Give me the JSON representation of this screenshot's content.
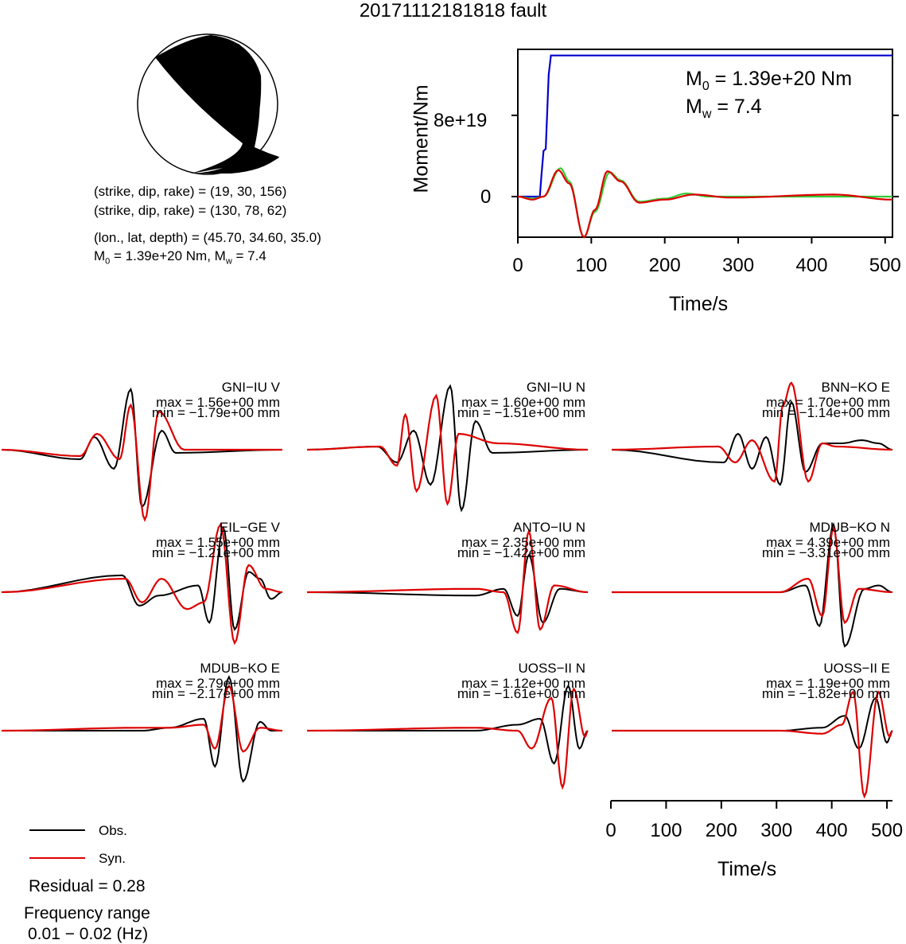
{
  "title": "20171112181818 fault",
  "beachball": {
    "line1": "(strike, dip, rake) = (19, 30, 156)",
    "line2": "(strike, dip, rake) = (130, 78, 62)",
    "line3": "(lon., lat, depth) = (45.70, 34.60, 35.0)",
    "m0_label": "M",
    "m0_sub": "0",
    "m0_value": " = 1.39e+20 Nm, M",
    "mw_sub": "w",
    "mw_value": " = 7.4"
  },
  "moment_plot": {
    "ylabel": "Moment/Nm",
    "xlabel": "Time/s",
    "yticks": [
      "0",
      "8e+19"
    ],
    "xticks": [
      "0",
      "100",
      "200",
      "300",
      "400",
      "500"
    ],
    "m0_text": " = 1.39e+20 Nm",
    "mw_text": " = 7.4",
    "m_letter": "M",
    "m0_sub": "0",
    "mw_sub": "w",
    "colors": {
      "cumulative": "#0000cc",
      "rate_obs": "#33cc33",
      "rate_syn": "#dd0000"
    }
  },
  "waveform_axis": {
    "xlabel": "Time/s",
    "xticks": [
      "0",
      "100",
      "200",
      "300",
      "400",
      "500"
    ]
  },
  "legend": {
    "obs": "Obs.",
    "syn": "Syn.",
    "residual": "Residual = 0.28",
    "freq_title": "Frequency range",
    "freq_value": "0.01 − 0.02 (Hz)",
    "obs_color": "#000000",
    "syn_color": "#dd0000"
  },
  "chart_data": [
    {
      "type": "line",
      "title": "",
      "xlabel": "Time/s",
      "ylabel": "Moment/Nm",
      "xlim": [
        0,
        510
      ],
      "ylim": [
        -4e+19,
        1.45e+20
      ],
      "series": [
        {
          "values": [
            [
              0,
              0
            ],
            [
              30,
              0
            ],
            [
              32,
              2e+19
            ],
            [
              35,
              4.5e+19
            ],
            [
              38,
              4.7e+19
            ],
            [
              42,
              1.2e+20
            ],
            [
              45,
              1.39e+20
            ],
            [
              510,
              1.39e+20
            ]
          ]
        },
        {
          "values": [
            [
              0,
              0
            ],
            [
              20,
              -2e+18
            ],
            [
              35,
              0
            ],
            [
              58,
              2.8e+19
            ],
            [
              70,
              1.5e+19
            ],
            [
              90,
              -4e+19
            ],
            [
              105,
              -1.5e+19
            ],
            [
              125,
              2.4e+19
            ],
            [
              140,
              1.6e+19
            ],
            [
              165,
              -5e+18
            ],
            [
              200,
              -2e+18
            ],
            [
              230,
              3e+18
            ],
            [
              260,
              0
            ],
            [
              510,
              0
            ]
          ]
        },
        {
          "values": [
            [
              0,
              0
            ],
            [
              20,
              -3e+18
            ],
            [
              35,
              0
            ],
            [
              55,
              2.6e+19
            ],
            [
              70,
              1.3e+19
            ],
            [
              90,
              -4e+19
            ],
            [
              105,
              -1.3e+19
            ],
            [
              122,
              2.5e+19
            ],
            [
              140,
              1.5e+19
            ],
            [
              165,
              -6e+18
            ],
            [
              200,
              -3e+18
            ],
            [
              240,
              2e+18
            ],
            [
              290,
              -1e+18
            ],
            [
              430,
              2e+18
            ],
            [
              510,
              -3e+18
            ]
          ]
        }
      ]
    },
    {
      "type": "line",
      "panels": [
        {
          "name": "GNI−IU V",
          "max": "max = 1.56e+00 mm",
          "min": "min = −1.79e+00 mm"
        },
        {
          "name": "GNI−IU N",
          "max": "max = 1.60e+00 mm",
          "min": "min = −1.51e+00 mm"
        },
        {
          "name": "BNN−KO E",
          "max": "max = 1.70e+00 mm",
          "min": "min = −1.14e+00 mm"
        },
        {
          "name": "EIL−GE V",
          "max": "max = 1.55e+00 mm",
          "min": "min = −1.21e+00 mm"
        },
        {
          "name": "ANTO−IU N",
          "max": "max = 2.35e+00 mm",
          "min": "min = −1.42e+00 mm"
        },
        {
          "name": "MDUB−KO N",
          "max": "max = 4.39e+00 mm",
          "min": "min = −3.31e+00 mm"
        },
        {
          "name": "MDUB−KO E",
          "max": "max = 2.79e+00 mm",
          "min": "min = −2.17e+00 mm"
        },
        {
          "name": "UOSS−II N",
          "max": "max = 1.12e+00 mm",
          "min": "min = −1.61e+00 mm"
        },
        {
          "name": "UOSS−II E",
          "max": "max = 1.19e+00 mm",
          "min": "min = −1.82e+00 mm"
        }
      ],
      "xlabel": "Time/s",
      "xlim": [
        0,
        510
      ]
    }
  ]
}
